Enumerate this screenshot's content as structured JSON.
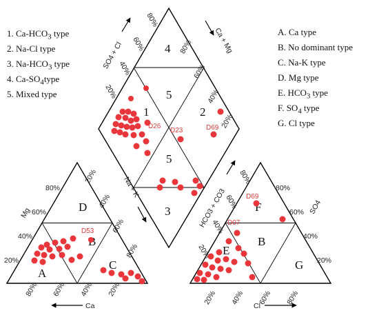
{
  "legend_left": [
    {
      "num": "1.",
      "text": "Ca-HCO",
      "sub": "3",
      "tail": " type"
    },
    {
      "num": "2.",
      "text": "Na-Cl type",
      "sub": "",
      "tail": ""
    },
    {
      "num": "3.",
      "text": "Na-HCO",
      "sub": "3",
      "tail": " type"
    },
    {
      "num": "4.",
      "text": "Ca-SO",
      "sub": "4",
      "tail": "type"
    },
    {
      "num": "5.",
      "text": "Mixed type",
      "sub": "",
      "tail": ""
    }
  ],
  "legend_right": [
    {
      "text": "A. Ca type",
      "sub": "",
      "tail": ""
    },
    {
      "text": "B. No dominant type",
      "sub": "",
      "tail": ""
    },
    {
      "text": "C. Na-K  type",
      "sub": "",
      "tail": ""
    },
    {
      "text": "D. Mg  type",
      "sub": "",
      "tail": ""
    },
    {
      "text": "E. HCO",
      "sub": "3",
      "tail": "  type"
    },
    {
      "text": "F. SO",
      "sub": "4",
      "tail": " type"
    },
    {
      "text": "G. Cl  type",
      "sub": "",
      "tail": ""
    }
  ],
  "axes": {
    "mg": "Mg",
    "ca": "Ca",
    "nak": "Na + K",
    "hco3co3": "HCO3 + CO3",
    "cl": "Cl",
    "so4": "SO4",
    "so4cl": "SO4 + Cl",
    "camg": "Ca + Mg"
  },
  "ticks": {
    "left_side": [
      "20%",
      "40%",
      "60%",
      "80%"
    ],
    "bottom_left": [
      "80%",
      "60%",
      "40%",
      "20%"
    ],
    "right_side": [
      "20%",
      "40%",
      "60%",
      "80%"
    ],
    "bottom_right": [
      "20%",
      "40%",
      "60%",
      "80%"
    ],
    "diamond_ul": [
      "20%",
      "40%",
      "60%",
      "80%"
    ],
    "diamond_ur": [
      "80%",
      "60%",
      "40%",
      "20%"
    ]
  },
  "zones": {
    "cation": [
      "A",
      "B",
      "C",
      "D"
    ],
    "anion": [
      "E",
      "F",
      "G",
      "B"
    ],
    "diamond": [
      "1",
      "2",
      "3",
      "4",
      "5",
      "5"
    ]
  },
  "samples": [
    "D26",
    "D23",
    "D69",
    "D53",
    "D69",
    "D07"
  ],
  "colors": {
    "points": "#e8363c",
    "labels": "#e03c3c",
    "lines": "#000000"
  }
}
